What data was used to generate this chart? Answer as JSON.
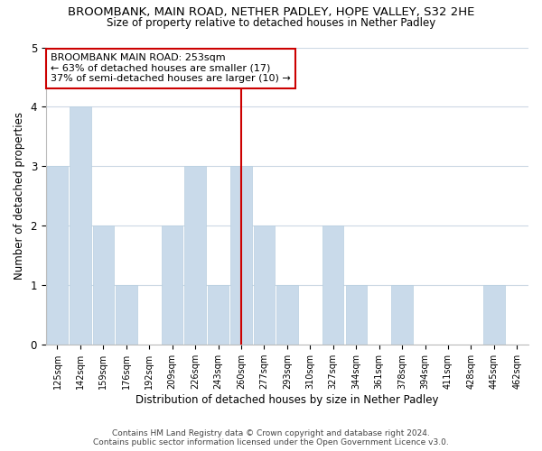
{
  "title": "BROOMBANK, MAIN ROAD, NETHER PADLEY, HOPE VALLEY, S32 2HE",
  "subtitle": "Size of property relative to detached houses in Nether Padley",
  "xlabel": "Distribution of detached houses by size in Nether Padley",
  "ylabel": "Number of detached properties",
  "bar_labels": [
    "125sqm",
    "142sqm",
    "159sqm",
    "176sqm",
    "192sqm",
    "209sqm",
    "226sqm",
    "243sqm",
    "260sqm",
    "277sqm",
    "293sqm",
    "310sqm",
    "327sqm",
    "344sqm",
    "361sqm",
    "378sqm",
    "394sqm",
    "411sqm",
    "428sqm",
    "445sqm",
    "462sqm"
  ],
  "bar_values": [
    3,
    4,
    2,
    1,
    0,
    2,
    3,
    1,
    3,
    2,
    1,
    0,
    2,
    1,
    0,
    1,
    0,
    0,
    0,
    1,
    0
  ],
  "bar_color": "#c9daea",
  "bar_edgecolor": "#b8cfe0",
  "reference_line_x_label": "260sqm",
  "reference_line_color": "#cc0000",
  "annotation_line1": "BROOMBANK MAIN ROAD: 253sqm",
  "annotation_line2": "← 63% of detached houses are smaller (17)",
  "annotation_line3": "37% of semi-detached houses are larger (10) →",
  "ylim": [
    0,
    5
  ],
  "yticks": [
    0,
    1,
    2,
    3,
    4,
    5
  ],
  "footnote1": "Contains HM Land Registry data © Crown copyright and database right 2024.",
  "footnote2": "Contains public sector information licensed under the Open Government Licence v3.0.",
  "bg_color": "#ffffff",
  "grid_color": "#ccd8e4",
  "annotation_box_edgecolor": "#cc0000",
  "annotation_box_facecolor": "#ffffff"
}
